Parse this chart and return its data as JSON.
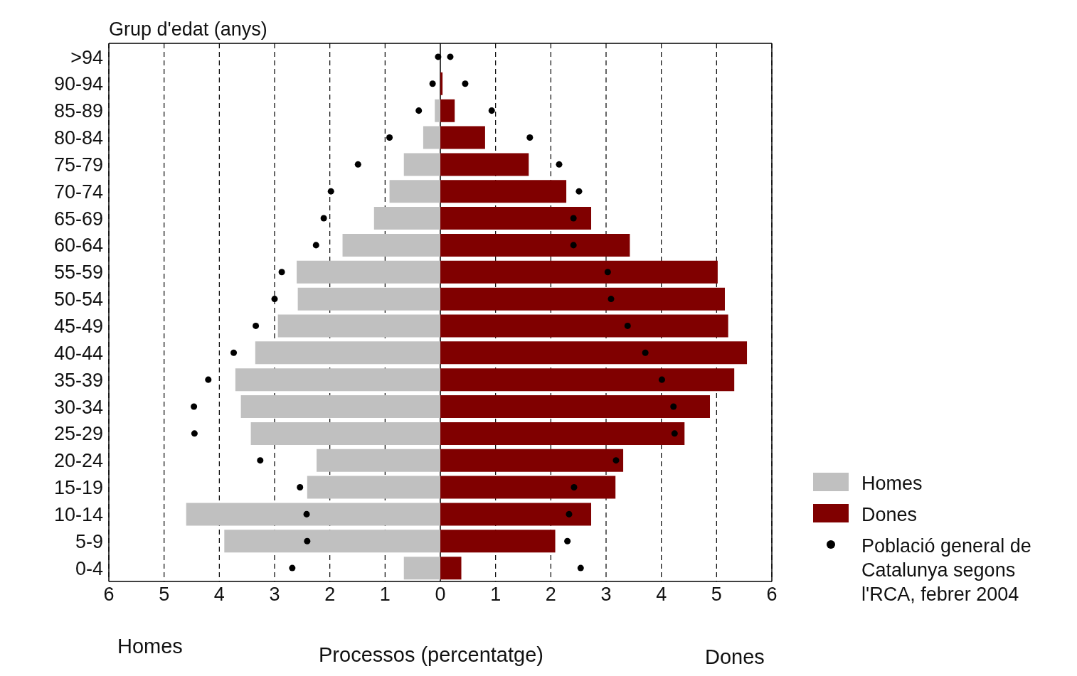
{
  "chart_data": {
    "type": "bar",
    "orientation": "horizontal",
    "stacked": true,
    "xlabel": "Processos (percentatge)",
    "ylabel": "Grup d'edat (anys)",
    "annotations": [
      "Homes",
      "Dones"
    ],
    "categories": [
      ">94",
      "90-94",
      "85-89",
      "80-84",
      "75-79",
      "70-74",
      "65-69",
      "60-64",
      "55-59",
      "50-54",
      "45-49",
      "40-44",
      "35-39",
      "30-34",
      "25-29",
      "20-24",
      "15-19",
      "10-14",
      "5-9",
      "0-4"
    ],
    "series": [
      {
        "name": "Homes",
        "color": "#c0c0c0",
        "values": [
          0,
          0,
          -0.1,
          -0.31,
          -0.66,
          -0.92,
          -1.2,
          -1.77,
          -2.6,
          -2.58,
          -2.94,
          -3.35,
          -3.71,
          -3.61,
          -3.43,
          -2.24,
          -2.41,
          -4.6,
          -3.91,
          -0.66
        ]
      },
      {
        "name": "Dones",
        "color": "#800000",
        "values": [
          0,
          0.04,
          0.26,
          0.81,
          1.6,
          2.28,
          2.73,
          3.43,
          5.02,
          5.15,
          5.21,
          5.55,
          5.32,
          4.88,
          4.42,
          3.31,
          3.17,
          2.73,
          2.08,
          0.38
        ]
      },
      {
        "name": "Població general de Catalunya segons l'RCA, febrer 2004",
        "type": "scatter",
        "color": "#000000",
        "values": [
          0.18,
          0.45,
          0.93,
          1.62,
          2.15,
          2.51,
          2.41,
          2.41,
          3.03,
          3.09,
          3.39,
          3.71,
          4.01,
          4.22,
          4.24,
          3.18,
          2.42,
          2.33,
          2.3,
          2.54
        ]
      },
      {
        "type": "scatter",
        "color": "#000000",
        "values": [
          -0.04,
          -0.14,
          -0.39,
          -0.92,
          -1.49,
          -1.98,
          -2.11,
          -2.25,
          -2.87,
          -3.0,
          -3.34,
          -3.74,
          -4.2,
          -4.46,
          -4.45,
          -3.26,
          -2.54,
          -2.42,
          -2.41,
          -2.68
        ]
      }
    ],
    "xlim": [
      -6,
      6
    ],
    "xticks": [
      {
        "value": -6,
        "label": "6"
      },
      {
        "value": -5,
        "label": "5"
      },
      {
        "value": -4,
        "label": "4"
      },
      {
        "value": -3,
        "label": "3"
      },
      {
        "value": -2,
        "label": "2"
      },
      {
        "value": -1,
        "label": "1"
      },
      0,
      1,
      2,
      3,
      4,
      5,
      6
    ],
    "grid": "x",
    "legend": "right",
    "marker": "circle"
  }
}
